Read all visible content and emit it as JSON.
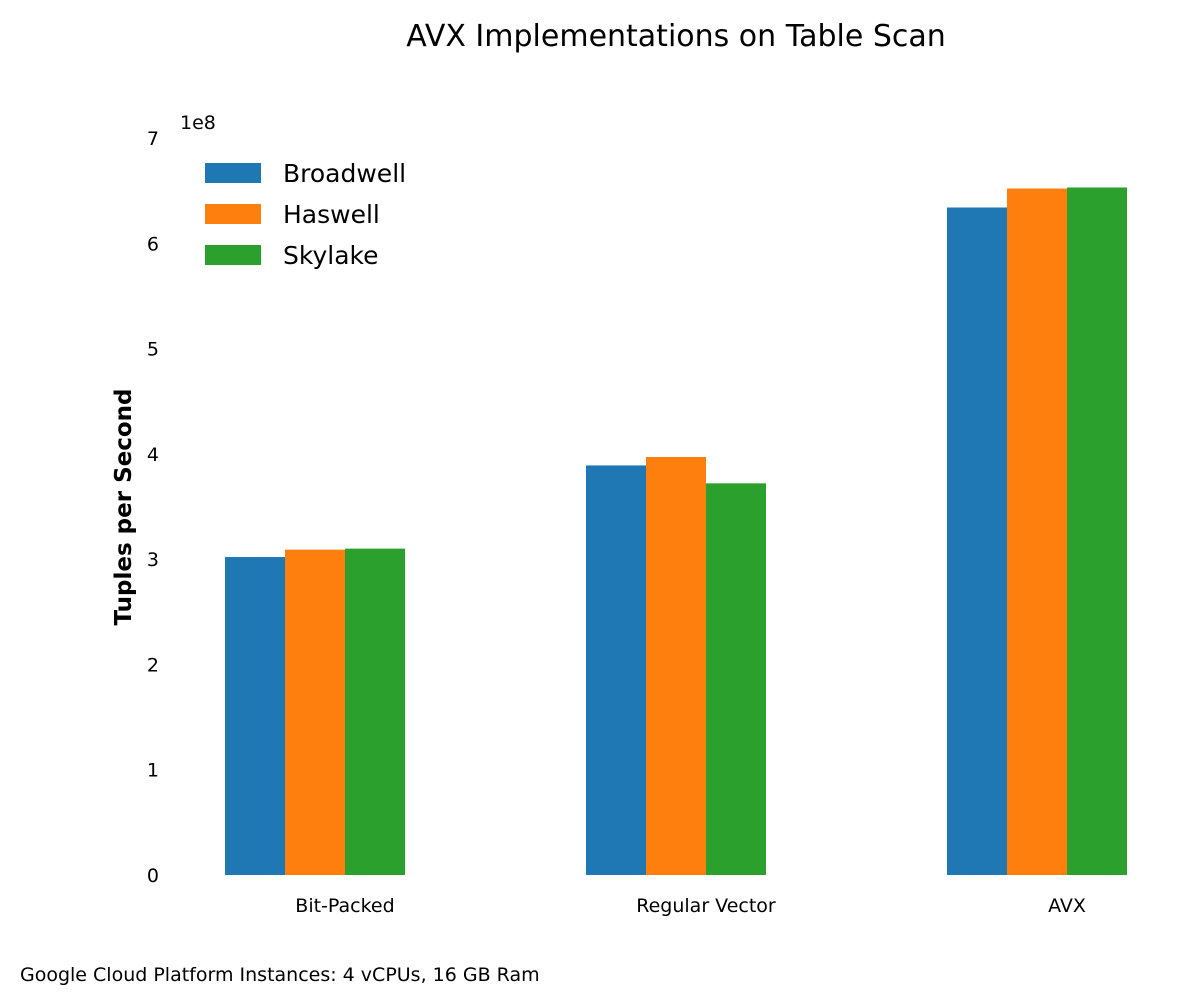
{
  "chart_data": {
    "type": "bar",
    "title": "AVX Implementations on Table Scan",
    "xlabel": "",
    "ylabel": "Tuples per Second",
    "y_offset_label": "1e8",
    "ylim": [
      0,
      7
    ],
    "y_unit_multiplier": 100000000,
    "yticks": [
      "0",
      "1",
      "2",
      "3",
      "4",
      "5",
      "6",
      "7"
    ],
    "grid": false,
    "legend_position": "top-left",
    "categories": [
      "Bit-Packed",
      "Regular Vector",
      "AVX"
    ],
    "series": [
      {
        "name": "Broadwell",
        "color": "#1f77b4",
        "values": [
          3.02,
          3.89,
          6.34
        ]
      },
      {
        "name": "Haswell",
        "color": "#ff7f0e",
        "values": [
          3.09,
          3.97,
          6.52
        ]
      },
      {
        "name": "Skylake",
        "color": "#2ca02c",
        "values": [
          3.1,
          3.72,
          6.53
        ]
      }
    ]
  },
  "footnote": "Google Cloud Platform Instances: 4 vCPUs, 16 GB Ram"
}
